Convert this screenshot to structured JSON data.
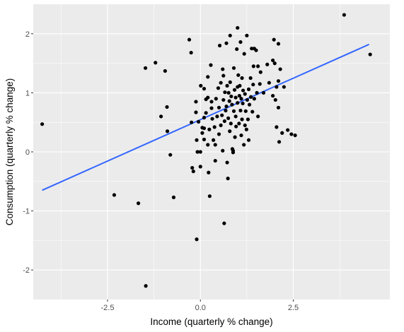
{
  "chart_data": {
    "type": "scatter",
    "title": "",
    "xlabel": "Income (quarterly % change)",
    "ylabel": "Consumption (quarterly % change)",
    "xlim": [
      -4.5,
      5.1
    ],
    "ylim": [
      -2.5,
      2.5
    ],
    "x_ticks": [
      -2.5,
      0.0,
      2.5
    ],
    "x_tick_labels": [
      "-2.5",
      "0.0",
      "2.5"
    ],
    "y_ticks": [
      -2,
      -1,
      0,
      1,
      2
    ],
    "y_tick_labels": [
      "-2",
      "-1",
      "0",
      "1",
      "2"
    ],
    "grid": true,
    "colors": {
      "panel": "#ebebeb",
      "grid": "#ffffff",
      "points": "#000000",
      "fit_line": "#3366ff"
    },
    "fit_line": {
      "method": "linear",
      "x": [
        -4.26,
        4.54
      ],
      "y": [
        -0.65,
        1.82
      ]
    },
    "points": [
      {
        "x": -4.26,
        "y": 0.47
      },
      {
        "x": -2.32,
        "y": -0.73
      },
      {
        "x": -1.67,
        "y": -0.87
      },
      {
        "x": -1.48,
        "y": 1.42
      },
      {
        "x": -1.47,
        "y": -2.27
      },
      {
        "x": -1.21,
        "y": 1.51
      },
      {
        "x": -1.06,
        "y": 0.6
      },
      {
        "x": -0.95,
        "y": 1.37
      },
      {
        "x": -0.9,
        "y": 0.76
      },
      {
        "x": -0.89,
        "y": 0.35
      },
      {
        "x": -0.81,
        "y": -0.05
      },
      {
        "x": -0.72,
        "y": -0.77
      },
      {
        "x": -0.3,
        "y": 1.9
      },
      {
        "x": -0.25,
        "y": 1.68
      },
      {
        "x": -0.24,
        "y": 0.5
      },
      {
        "x": -0.22,
        "y": -0.27
      },
      {
        "x": -0.19,
        "y": -0.33
      },
      {
        "x": -0.12,
        "y": 0.85
      },
      {
        "x": -0.12,
        "y": 0.67
      },
      {
        "x": -0.1,
        "y": 0.2
      },
      {
        "x": -0.08,
        "y": 0.0
      },
      {
        "x": -0.1,
        "y": -1.48
      },
      {
        "x": -0.05,
        "y": 0.51
      },
      {
        "x": 0.0,
        "y": 0.0
      },
      {
        "x": 0.0,
        "y": -0.25
      },
      {
        "x": 0.01,
        "y": 1.12
      },
      {
        "x": 0.05,
        "y": 0.41
      },
      {
        "x": 0.05,
        "y": 0.32
      },
      {
        "x": 0.1,
        "y": 0.58
      },
      {
        "x": 0.1,
        "y": 0.4
      },
      {
        "x": 0.1,
        "y": 1.07
      },
      {
        "x": 0.1,
        "y": 0.21
      },
      {
        "x": 0.15,
        "y": 0.66
      },
      {
        "x": 0.15,
        "y": 0.89
      },
      {
        "x": 0.2,
        "y": 1.27
      },
      {
        "x": 0.2,
        "y": 0.92
      },
      {
        "x": 0.2,
        "y": 0.12
      },
      {
        "x": 0.22,
        "y": -0.35
      },
      {
        "x": 0.24,
        "y": 0.38
      },
      {
        "x": 0.25,
        "y": -0.75
      },
      {
        "x": 0.28,
        "y": 1.47
      },
      {
        "x": 0.3,
        "y": 0.85
      },
      {
        "x": 0.3,
        "y": 0.74
      },
      {
        "x": 0.32,
        "y": 0.56
      },
      {
        "x": 0.35,
        "y": 0.2
      },
      {
        "x": 0.38,
        "y": 0.42
      },
      {
        "x": 0.4,
        "y": 0.12
      },
      {
        "x": 0.4,
        "y": -0.15
      },
      {
        "x": 0.42,
        "y": 0.9
      },
      {
        "x": 0.45,
        "y": 0.6
      },
      {
        "x": 0.48,
        "y": 1.08
      },
      {
        "x": 0.5,
        "y": 0.75
      },
      {
        "x": 0.5,
        "y": 0.3
      },
      {
        "x": 0.52,
        "y": 1.8
      },
      {
        "x": 0.55,
        "y": 0.45
      },
      {
        "x": 0.55,
        "y": 1.17
      },
      {
        "x": 0.58,
        "y": 0.62
      },
      {
        "x": 0.6,
        "y": 0.02
      },
      {
        "x": 0.6,
        "y": 1.4
      },
      {
        "x": 0.62,
        "y": 0.88
      },
      {
        "x": 0.62,
        "y": 1.29
      },
      {
        "x": 0.64,
        "y": -1.21
      },
      {
        "x": 0.65,
        "y": 0.52
      },
      {
        "x": 0.66,
        "y": 1.01
      },
      {
        "x": 0.68,
        "y": 0.7
      },
      {
        "x": 0.7,
        "y": 1.84
      },
      {
        "x": 0.7,
        "y": 0.77
      },
      {
        "x": 0.72,
        "y": -0.18
      },
      {
        "x": 0.72,
        "y": 1.12
      },
      {
        "x": 0.74,
        "y": -0.45
      },
      {
        "x": 0.75,
        "y": 0.57
      },
      {
        "x": 0.76,
        "y": 1.0
      },
      {
        "x": 0.78,
        "y": 0.86
      },
      {
        "x": 0.79,
        "y": 0.35
      },
      {
        "x": 0.8,
        "y": 1.97
      },
      {
        "x": 0.8,
        "y": 1.18
      },
      {
        "x": 0.82,
        "y": 0.48
      },
      {
        "x": 0.83,
        "y": 0.94
      },
      {
        "x": 0.85,
        "y": 0.8
      },
      {
        "x": 0.86,
        "y": 0.05
      },
      {
        "x": 0.88,
        "y": 0.02
      },
      {
        "x": 0.88,
        "y": -0.01
      },
      {
        "x": 0.9,
        "y": 0.69
      },
      {
        "x": 0.9,
        "y": 1.42
      },
      {
        "x": 0.92,
        "y": 1.05
      },
      {
        "x": 0.93,
        "y": 0.25
      },
      {
        "x": 0.95,
        "y": 0.6
      },
      {
        "x": 0.95,
        "y": 0.92
      },
      {
        "x": 0.96,
        "y": 0.43
      },
      {
        "x": 0.98,
        "y": 1.74
      },
      {
        "x": 1.0,
        "y": 1.1
      },
      {
        "x": 1.0,
        "y": 0.83
      },
      {
        "x": 1.0,
        "y": 2.1
      },
      {
        "x": 1.02,
        "y": 1.3
      },
      {
        "x": 1.04,
        "y": 0.48
      },
      {
        "x": 1.05,
        "y": 0.95
      },
      {
        "x": 1.06,
        "y": 1.12
      },
      {
        "x": 1.08,
        "y": 0.7
      },
      {
        "x": 1.08,
        "y": 1.86
      },
      {
        "x": 1.1,
        "y": 0.28
      },
      {
        "x": 1.1,
        "y": 0.9
      },
      {
        "x": 1.12,
        "y": 0.55
      },
      {
        "x": 1.12,
        "y": 1.25
      },
      {
        "x": 1.14,
        "y": 0.82
      },
      {
        "x": 1.15,
        "y": 1.04
      },
      {
        "x": 1.17,
        "y": 0.12
      },
      {
        "x": 1.18,
        "y": 1.66
      },
      {
        "x": 1.2,
        "y": 0.45
      },
      {
        "x": 1.2,
        "y": 0.98
      },
      {
        "x": 1.22,
        "y": 0.69
      },
      {
        "x": 1.24,
        "y": 0.38
      },
      {
        "x": 1.25,
        "y": 1.97
      },
      {
        "x": 1.26,
        "y": 0.88
      },
      {
        "x": 1.28,
        "y": 0.55
      },
      {
        "x": 1.3,
        "y": 1.06
      },
      {
        "x": 1.3,
        "y": 0.2
      },
      {
        "x": 1.32,
        "y": 0.8
      },
      {
        "x": 1.35,
        "y": 1.25
      },
      {
        "x": 1.36,
        "y": 0.93
      },
      {
        "x": 1.38,
        "y": 1.75
      },
      {
        "x": 1.4,
        "y": 0.68
      },
      {
        "x": 1.42,
        "y": 1.14
      },
      {
        "x": 1.43,
        "y": 1.45
      },
      {
        "x": 1.45,
        "y": 0.9
      },
      {
        "x": 1.45,
        "y": 1.75
      },
      {
        "x": 1.5,
        "y": 1.72
      },
      {
        "x": 1.52,
        "y": 1.0
      },
      {
        "x": 1.55,
        "y": 1.45
      },
      {
        "x": 1.55,
        "y": 0.6
      },
      {
        "x": 1.6,
        "y": 1.15
      },
      {
        "x": 1.62,
        "y": 1.35
      },
      {
        "x": 1.7,
        "y": 1.0
      },
      {
        "x": 1.8,
        "y": 1.48
      },
      {
        "x": 1.85,
        "y": 1.17
      },
      {
        "x": 1.95,
        "y": 1.55
      },
      {
        "x": 1.95,
        "y": 0.95
      },
      {
        "x": 1.98,
        "y": 1.9
      },
      {
        "x": 2.0,
        "y": 1.5
      },
      {
        "x": 2.02,
        "y": 0.88
      },
      {
        "x": 2.05,
        "y": 0.42
      },
      {
        "x": 2.05,
        "y": 1.1
      },
      {
        "x": 2.1,
        "y": 1.83
      },
      {
        "x": 2.1,
        "y": 0.75
      },
      {
        "x": 2.1,
        "y": 1.2
      },
      {
        "x": 2.12,
        "y": 0.17
      },
      {
        "x": 2.15,
        "y": 1.4
      },
      {
        "x": 2.2,
        "y": 0.32
      },
      {
        "x": 2.25,
        "y": 1.1
      },
      {
        "x": 2.35,
        "y": 0.37
      },
      {
        "x": 2.45,
        "y": 0.3
      },
      {
        "x": 2.55,
        "y": 0.28
      },
      {
        "x": 3.87,
        "y": 2.32
      },
      {
        "x": 4.57,
        "y": 1.65
      }
    ]
  }
}
